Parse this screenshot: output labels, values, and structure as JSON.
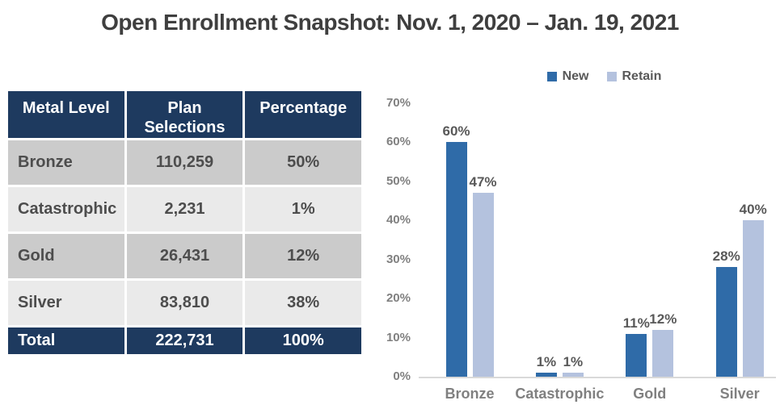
{
  "title": "Open Enrollment Snapshot: Nov. 1, 2020 – Jan. 19, 2021",
  "table": {
    "headers": [
      "Metal Level",
      "Plan Selections",
      "Percentage"
    ],
    "rows": [
      {
        "level": "Bronze",
        "selections": "110,259",
        "percentage": "50%"
      },
      {
        "level": "Catastrophic",
        "selections": "2,231",
        "percentage": "1%"
      },
      {
        "level": "Gold",
        "selections": "26,431",
        "percentage": "12%"
      },
      {
        "level": "Silver",
        "selections": "83,810",
        "percentage": "38%"
      }
    ],
    "total": {
      "level": "Total",
      "selections": "222,731",
      "percentage": "100%"
    }
  },
  "chart_data": {
    "type": "bar",
    "categories": [
      "Bronze",
      "Catastrophic",
      "Gold",
      "Silver"
    ],
    "series": [
      {
        "name": "New",
        "color": "#2F6BA8",
        "values": [
          60,
          1,
          11,
          28
        ],
        "labels": [
          "60%",
          "1%",
          "11%",
          "28%"
        ]
      },
      {
        "name": "Retain",
        "color": "#B4C2DE",
        "values": [
          47,
          1,
          12,
          40
        ],
        "labels": [
          "47%",
          "1%",
          "12%",
          "40%"
        ]
      }
    ],
    "ylim": [
      0,
      70
    ],
    "ytick_step": 10,
    "ytick_labels": [
      "0%",
      "10%",
      "20%",
      "30%",
      "40%",
      "50%",
      "60%",
      "70%"
    ],
    "grid": false,
    "legend_position": "top"
  },
  "colors": {
    "header_navy": "#1E3A5F",
    "row_dark": "#CBCBCB",
    "row_light": "#EAEAEA",
    "bar_new": "#2F6BA8",
    "bar_retain": "#B4C2DE",
    "axis_line": "#D9D9D9",
    "title_text": "#3F3F3F",
    "cell_text": "#4D4D4D",
    "tick_text": "#808080",
    "data_label_text": "#595959"
  }
}
